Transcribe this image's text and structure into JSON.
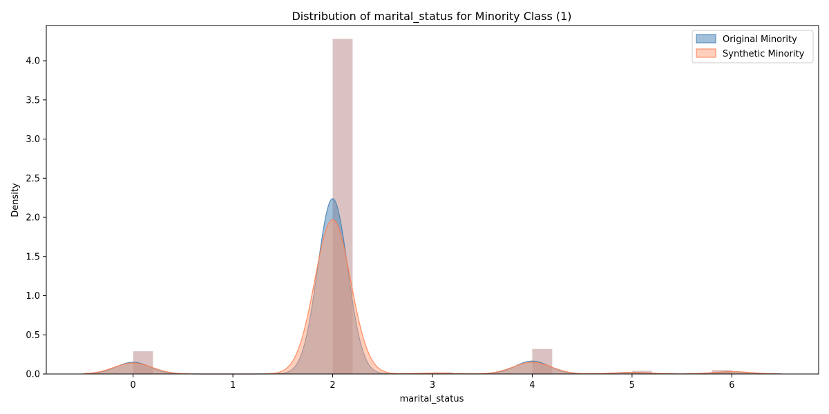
{
  "chart_data": {
    "type": "area",
    "title": "Distribution of marital_status for Minority Class (1)",
    "xlabel": "marital_status",
    "ylabel": "Density",
    "xlim": [
      -0.87,
      6.87
    ],
    "ylim": [
      0,
      4.45
    ],
    "x_ticks": [
      0,
      1,
      2,
      3,
      4,
      5,
      6
    ],
    "y_ticks": [
      0.0,
      0.5,
      1.0,
      1.5,
      2.0,
      2.5,
      3.0,
      3.5,
      4.0,
      4.5
    ],
    "legend_position": "top-right",
    "grid": false,
    "histogram": {
      "color": "#bc8f8f",
      "bins": [
        {
          "x0": 0.0,
          "x1": 0.2,
          "value": 0.29
        },
        {
          "x0": 2.0,
          "x1": 2.2,
          "value": 4.28
        },
        {
          "x0": 3.0,
          "x1": 3.2,
          "value": 0.02
        },
        {
          "x0": 4.0,
          "x1": 4.2,
          "value": 0.32
        },
        {
          "x0": 5.0,
          "x1": 5.2,
          "value": 0.04
        },
        {
          "x0": 5.8,
          "x1": 6.0,
          "value": 0.05
        }
      ]
    },
    "series": [
      {
        "name": "Original Minority",
        "color": "#4682b4",
        "components": [
          {
            "mu": 0.0,
            "sigma": 0.17,
            "amp": 0.15
          },
          {
            "mu": 2.0,
            "sigma": 0.15,
            "amp": 2.24
          },
          {
            "mu": 3.0,
            "sigma": 0.17,
            "amp": 0.01
          },
          {
            "mu": 4.0,
            "sigma": 0.17,
            "amp": 0.165
          },
          {
            "mu": 5.0,
            "sigma": 0.17,
            "amp": 0.02
          },
          {
            "mu": 6.0,
            "sigma": 0.17,
            "amp": 0.03
          }
        ]
      },
      {
        "name": "Synthetic Minority",
        "color": "#ffa07a",
        "edge": "#ff7f50",
        "components": [
          {
            "mu": 0.0,
            "sigma": 0.19,
            "amp": 0.14
          },
          {
            "mu": 2.0,
            "sigma": 0.18,
            "amp": 1.97
          },
          {
            "mu": 3.0,
            "sigma": 0.19,
            "amp": 0.01
          },
          {
            "mu": 4.0,
            "sigma": 0.19,
            "amp": 0.15
          },
          {
            "mu": 5.0,
            "sigma": 0.19,
            "amp": 0.02
          },
          {
            "mu": 6.0,
            "sigma": 0.19,
            "amp": 0.03
          }
        ]
      }
    ]
  }
}
